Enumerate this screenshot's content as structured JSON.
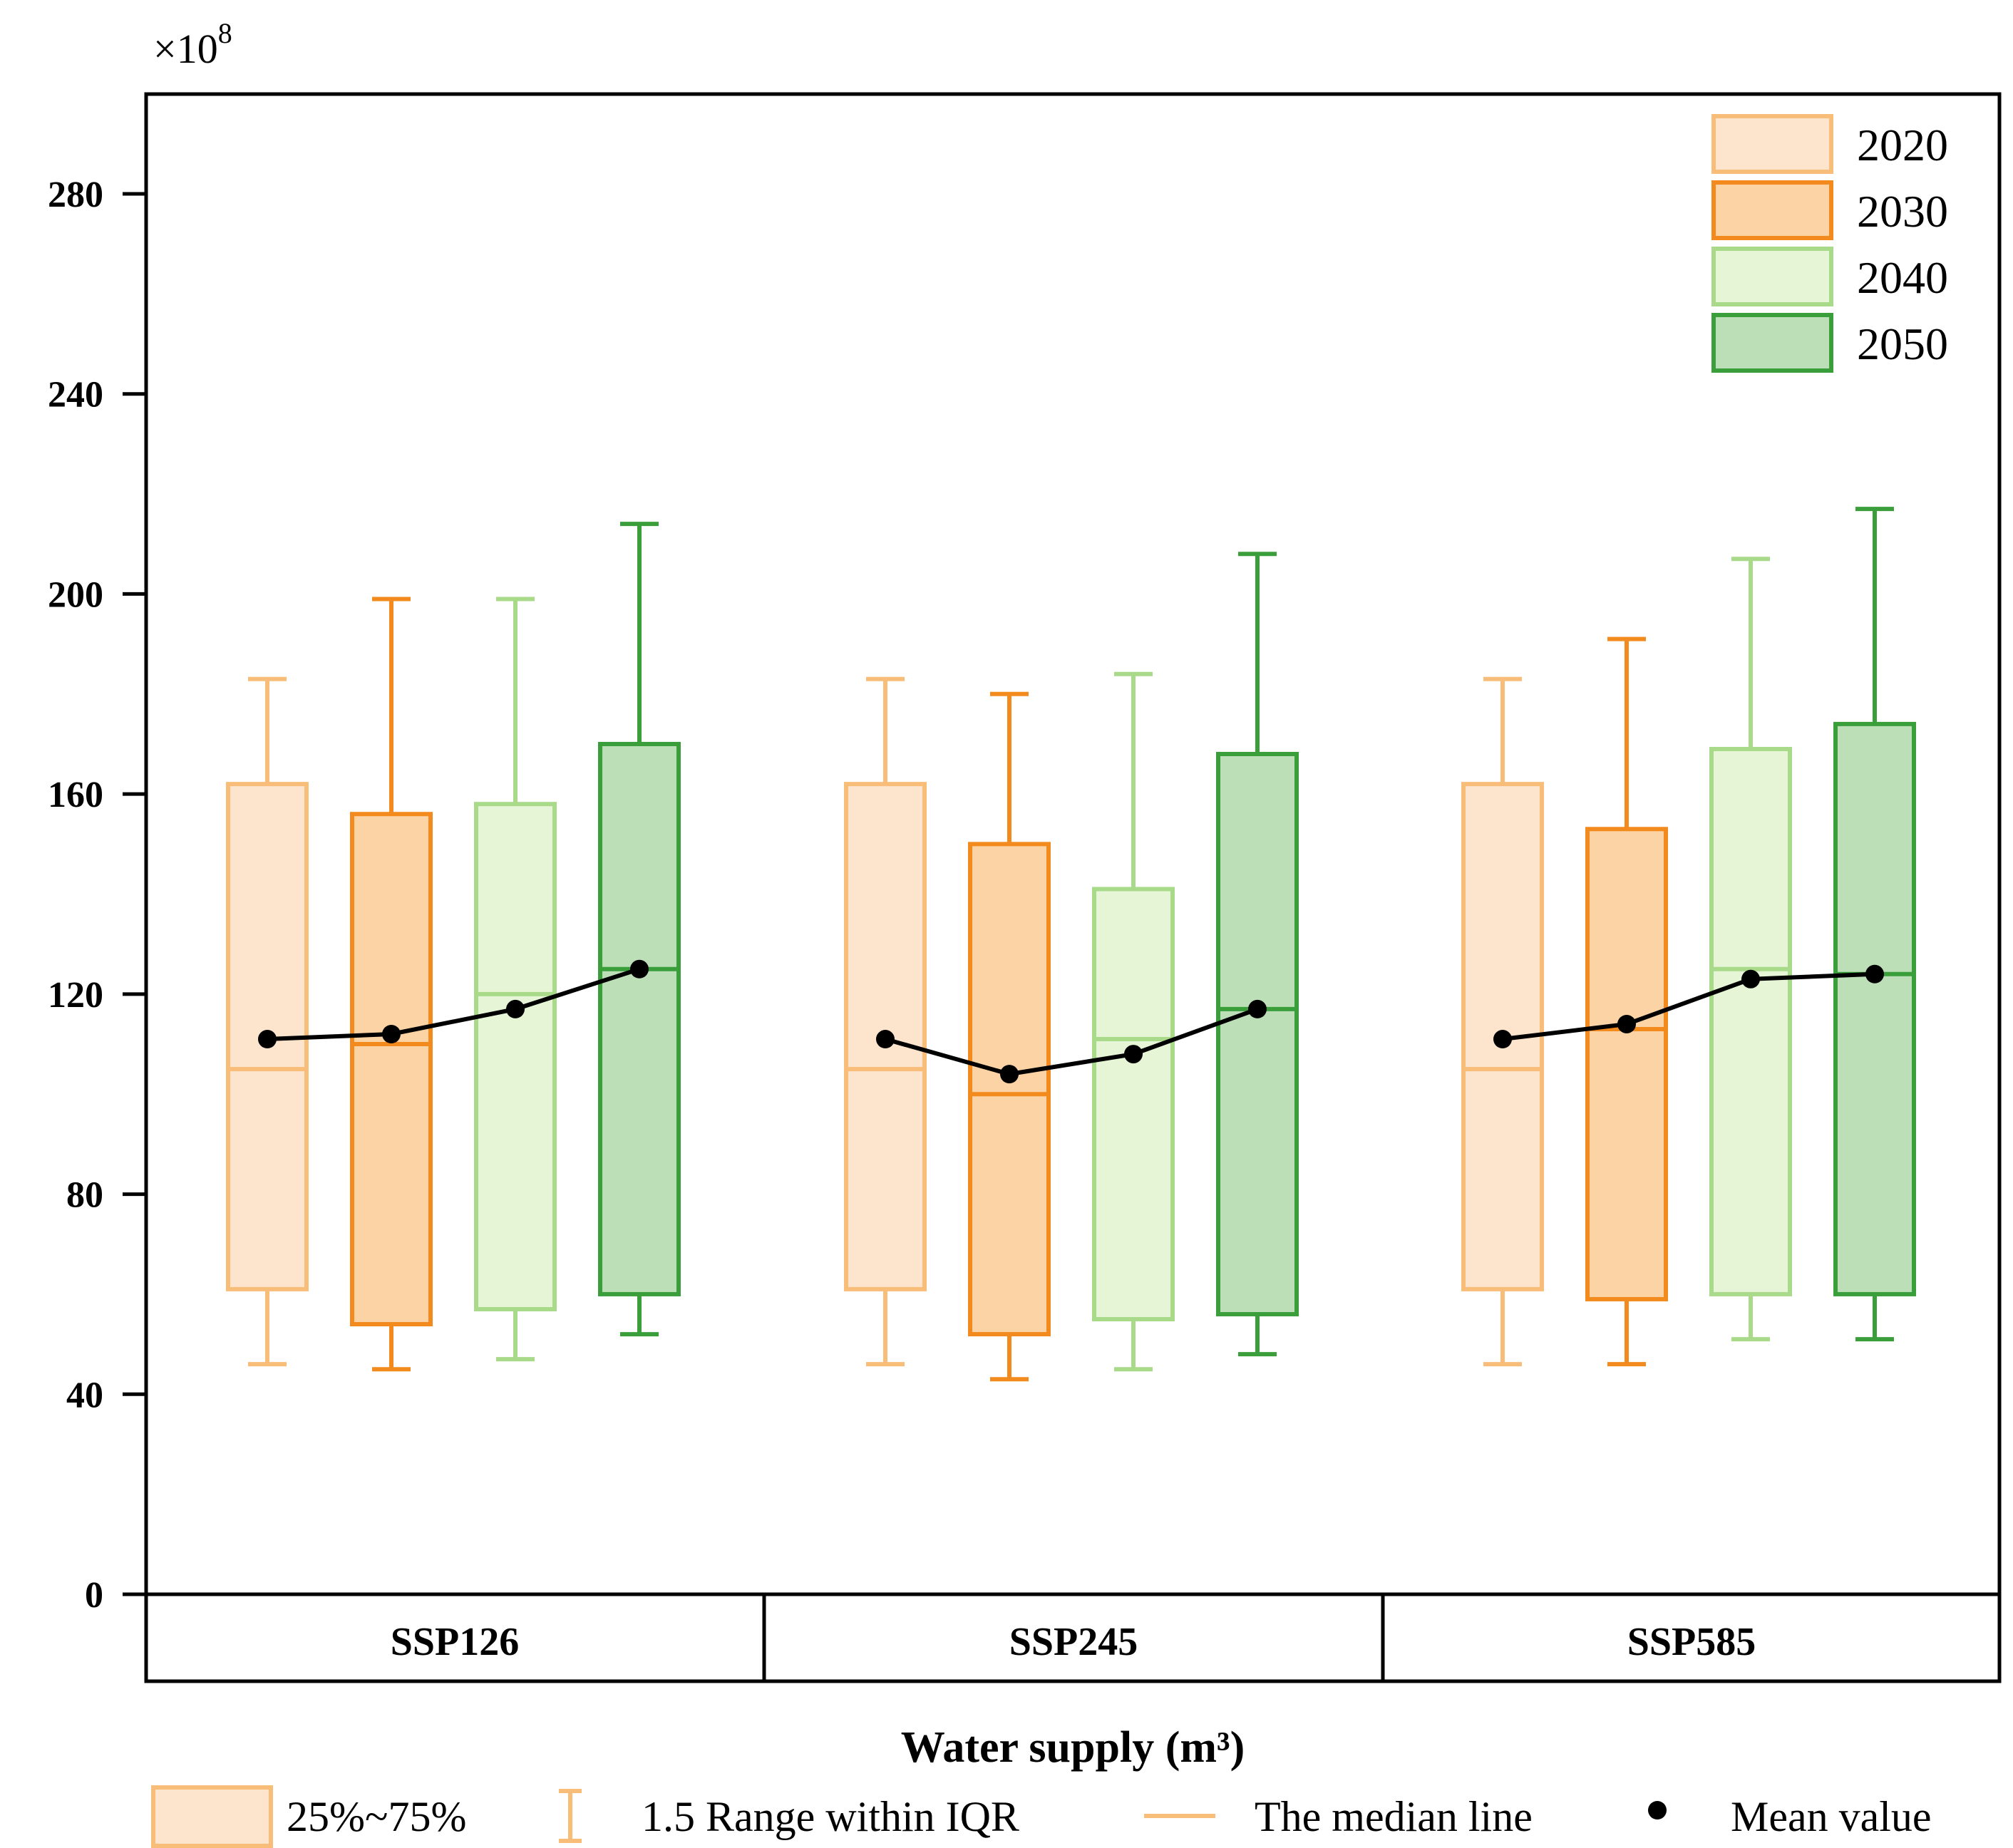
{
  "chart_data": {
    "type": "box",
    "title": "",
    "xlabel": "Water supply (m³)",
    "ylabel": "",
    "y_multiplier": "×10",
    "y_multiplier_exp": "8",
    "ylim": [
      0,
      300
    ],
    "yticks": [
      0,
      40,
      80,
      120,
      160,
      200,
      240,
      280
    ],
    "groups": [
      "SSP126",
      "SSP245",
      "SSP585"
    ],
    "series": [
      {
        "name": "2020",
        "fill": "#FDE4CC",
        "stroke": "#F9BD7A",
        "boxes": [
          {
            "whisker_low": 46,
            "q1": 61,
            "median": 105,
            "q3": 162,
            "whisker_high": 183,
            "mean": 111
          },
          {
            "whisker_low": 46,
            "q1": 61,
            "median": 105,
            "q3": 162,
            "whisker_high": 183,
            "mean": 111
          },
          {
            "whisker_low": 46,
            "q1": 61,
            "median": 105,
            "q3": 162,
            "whisker_high": 183,
            "mean": 111
          }
        ]
      },
      {
        "name": "2030",
        "fill": "#FCD3A4",
        "stroke": "#F28A1E",
        "boxes": [
          {
            "whisker_low": 45,
            "q1": 54,
            "median": 110,
            "q3": 156,
            "whisker_high": 199,
            "mean": 112
          },
          {
            "whisker_low": 43,
            "q1": 52,
            "median": 100,
            "q3": 150,
            "whisker_high": 180,
            "mean": 104
          },
          {
            "whisker_low": 46,
            "q1": 59,
            "median": 113,
            "q3": 153,
            "whisker_high": 191,
            "mean": 114
          }
        ]
      },
      {
        "name": "2040",
        "fill": "#E6F5D6",
        "stroke": "#A9DA8A",
        "boxes": [
          {
            "whisker_low": 47,
            "q1": 57,
            "median": 120,
            "q3": 158,
            "whisker_high": 199,
            "mean": 117
          },
          {
            "whisker_low": 45,
            "q1": 55,
            "median": 111,
            "q3": 141,
            "whisker_high": 184,
            "mean": 108
          },
          {
            "whisker_low": 51,
            "q1": 60,
            "median": 125,
            "q3": 169,
            "whisker_high": 207,
            "mean": 123
          }
        ]
      },
      {
        "name": "2050",
        "fill": "#BDDFB7",
        "stroke": "#3A9E3A",
        "boxes": [
          {
            "whisker_low": 52,
            "q1": 60,
            "median": 125,
            "q3": 170,
            "whisker_high": 214,
            "mean": 125
          },
          {
            "whisker_low": 48,
            "q1": 56,
            "median": 117,
            "q3": 168,
            "whisker_high": 208,
            "mean": 117
          },
          {
            "whisker_low": 51,
            "q1": 60,
            "median": 124,
            "q3": 174,
            "whisker_high": 217,
            "mean": 124
          }
        ]
      }
    ],
    "legend": {
      "position": "top-right",
      "entries": [
        "2020",
        "2030",
        "2040",
        "2050"
      ]
    },
    "key_legend": {
      "position": "bottom",
      "items": [
        {
          "label": "25%~75%"
        },
        {
          "label": "1.5 Range within IQR"
        },
        {
          "label": "The median line"
        },
        {
          "label": "Mean value"
        }
      ]
    },
    "grid": false
  }
}
